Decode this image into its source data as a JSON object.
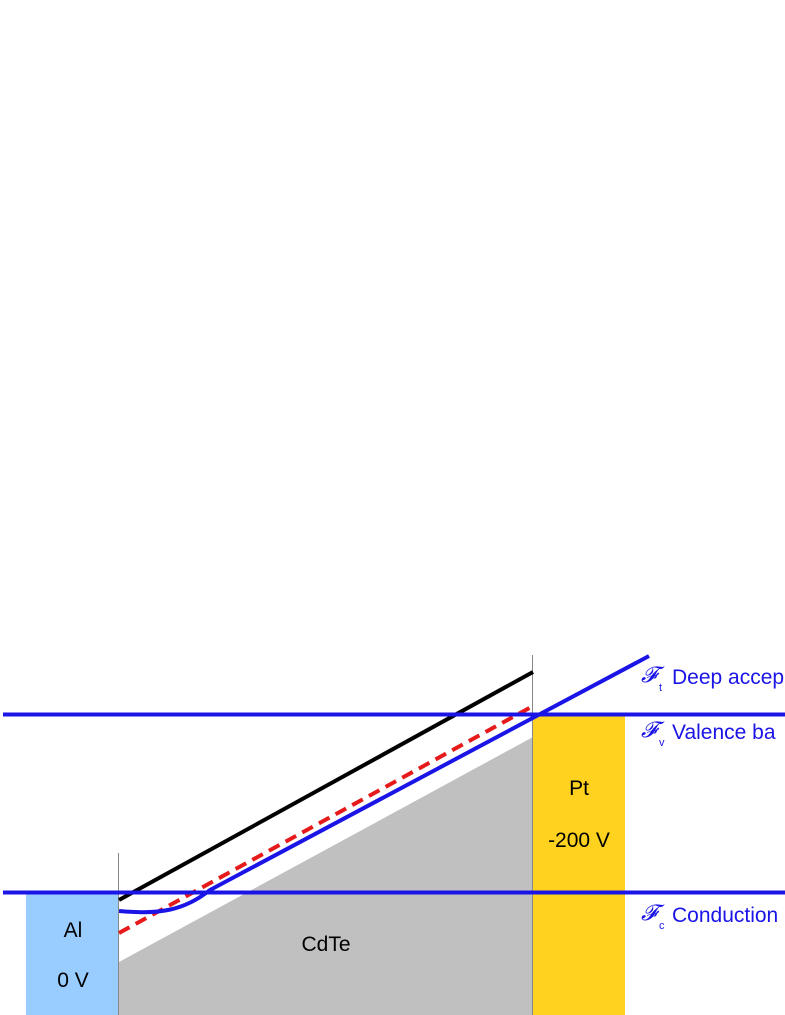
{
  "colors": {
    "blue_line": "#1a14e6",
    "al_fill": "#99ccff",
    "pt_fill": "#ffd21f",
    "cdte_fill": "#c0c0c0",
    "black_line": "#000000",
    "red_dashed": "#e61a1a",
    "guide_line": "#888888"
  },
  "regions": {
    "al": {
      "name": "Al",
      "voltage": "0 V"
    },
    "pt": {
      "name": "Pt",
      "voltage": "-200 V"
    },
    "cdte": {
      "name": "CdTe"
    }
  },
  "levels": {
    "deep_acceptor": {
      "symbol": "𝓕",
      "subscript": "t",
      "label": "Deep accep"
    },
    "valence": {
      "symbol": "𝓕",
      "subscript": "v",
      "label": "Valence ba"
    },
    "conduction": {
      "symbol": "𝓕",
      "subscript": "c",
      "label": "Conduction"
    }
  }
}
